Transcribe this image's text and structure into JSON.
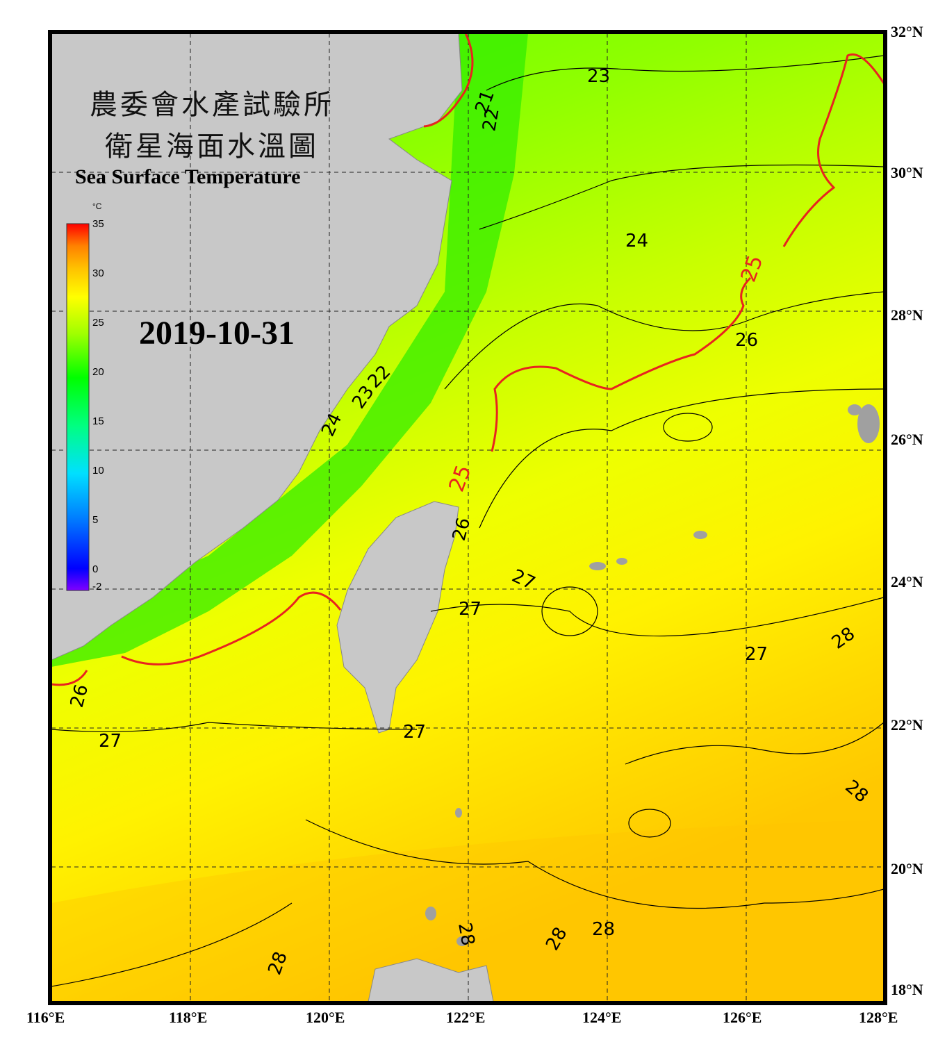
{
  "title": {
    "line1": "農委會水產試驗所",
    "line2": "衛星海面水溫圖",
    "english": "Sea Surface Temperature"
  },
  "date": "2019-10-31",
  "colorbar": {
    "unit": "°C",
    "ticks": [
      "35",
      "30",
      "25",
      "20",
      "15",
      "10",
      "5",
      "0",
      "-2"
    ],
    "tick_values": [
      35,
      30,
      25,
      20,
      15,
      10,
      5,
      0,
      -2
    ],
    "colors": [
      "#8000ff",
      "#0000ff",
      "#0080ff",
      "#00e0ff",
      "#00ff80",
      "#00ff00",
      "#a0ff00",
      "#ffff00",
      "#ffc000",
      "#ff8000",
      "#ff0000"
    ]
  },
  "axes": {
    "lat_labels": [
      "32°N",
      "30°N",
      "28°N",
      "26°N",
      "24°N",
      "22°N",
      "20°N",
      "18°N"
    ],
    "lat_values": [
      32,
      30,
      28,
      26,
      24,
      22,
      20,
      18
    ],
    "lon_labels": [
      "116°E",
      "118°E",
      "120°E",
      "122°E",
      "124°E",
      "126°E",
      "128°E"
    ],
    "lon_values": [
      116,
      118,
      120,
      122,
      124,
      126,
      128
    ],
    "lat_range": [
      18,
      32
    ],
    "lon_range": [
      116,
      128
    ]
  },
  "contour_labels": [
    "23",
    "24",
    "25",
    "26",
    "27",
    "28",
    "21",
    "22"
  ],
  "map_colors": {
    "land": "#c8c8c8",
    "cold": "#33ee00",
    "mid": "#a8ff00",
    "warm": "#f5f500",
    "hot": "#ffc400",
    "isotherm_25": "#e8231f"
  }
}
